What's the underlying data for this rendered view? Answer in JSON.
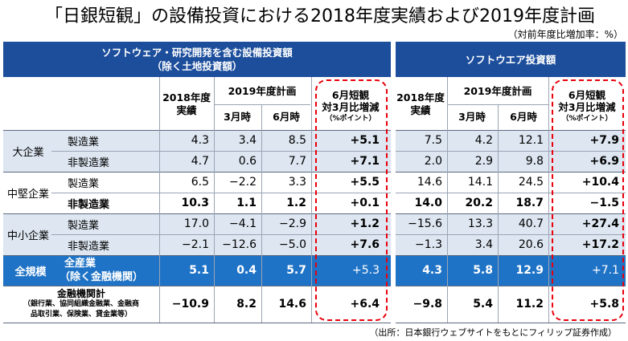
{
  "title": "「日銀短観」の設備投資における2018年度実績および2019年度計画",
  "unit": "（対前年度比増加率：%）",
  "source": "（出所：日本銀行ウェブサイトをもとにフィリップ証券作成）",
  "left_table": {
    "header_line1": "ソフトウェア・研究開発を含む設備投資額",
    "header_line2": "（除く土地投資額）",
    "col_2018_line1": "2018年度",
    "col_2018_line2": "実績",
    "col_2019": "2019年度計画",
    "col_march": "3月時",
    "col_june": "6月時",
    "col_diff_line1": "6月短観",
    "col_diff_line2": "対3月比増減",
    "col_diff_line3": "（%ポイント）"
  },
  "right_table": {
    "header": "ソフトウエア投資額",
    "col_2018_line1": "2018年度",
    "col_2018_line2": "実績",
    "col_2019": "2019年度計画",
    "col_march": "3月時",
    "col_june": "6月時",
    "col_diff_line1": "6月短観",
    "col_diff_line2": "対3月比増減",
    "col_diff_line3": "（%ポイント）"
  },
  "groups": {
    "large": "大企業",
    "mid": "中堅企業",
    "small": "中小企業",
    "all": "全規模",
    "all_sub_line1": "全産業",
    "all_sub_line2": "（除く金融機関）",
    "fin_line1": "金融機関計",
    "fin_line2": "（銀行業、協同組織金融業、金融商",
    "fin_line3": "品取引業、保険業、貸金業等）"
  },
  "rows": [
    {
      "sector": "製造業",
      "l": [
        "4.3",
        "3.4",
        "8.5",
        "+5.1"
      ],
      "r": [
        "7.5",
        "4.2",
        "12.1",
        "+7.9"
      ]
    },
    {
      "sector": "非製造業",
      "l": [
        "4.7",
        "0.6",
        "7.7",
        "+7.1"
      ],
      "r": [
        "2.0",
        "2.9",
        "9.8",
        "+6.9"
      ]
    },
    {
      "sector": "製造業",
      "l": [
        "6.5",
        "−2.2",
        "3.3",
        "+5.5"
      ],
      "r": [
        "14.6",
        "14.1",
        "24.5",
        "+10.4"
      ]
    },
    {
      "sector": "非製造業",
      "l": [
        "10.3",
        "1.1",
        "1.2",
        "+0.1"
      ],
      "r": [
        "14.0",
        "20.2",
        "18.7",
        "−1.5"
      ]
    },
    {
      "sector": "製造業",
      "l": [
        "17.0",
        "−4.1",
        "−2.9",
        "+1.2"
      ],
      "r": [
        "−15.6",
        "13.3",
        "40.7",
        "+27.4"
      ]
    },
    {
      "sector": "非製造業",
      "l": [
        "−2.1",
        "−12.6",
        "−5.0",
        "+7.6"
      ],
      "r": [
        "−1.3",
        "3.4",
        "20.6",
        "+17.2"
      ]
    },
    {
      "sector": "",
      "l": [
        "5.1",
        "0.4",
        "5.7",
        "+5.3"
      ],
      "r": [
        "4.3",
        "5.8",
        "12.9",
        "+7.1"
      ]
    },
    {
      "sector": "",
      "l": [
        "−10.9",
        "8.2",
        "14.6",
        "+6.4"
      ],
      "r": [
        "−9.8",
        "5.4",
        "11.2",
        "+5.8"
      ]
    }
  ],
  "colors": {
    "header_blue": "#1c4e9c",
    "total_row_blue": "#1f73c6",
    "band_light": "#dde6f1",
    "highlight_dash": "#e8000b"
  }
}
